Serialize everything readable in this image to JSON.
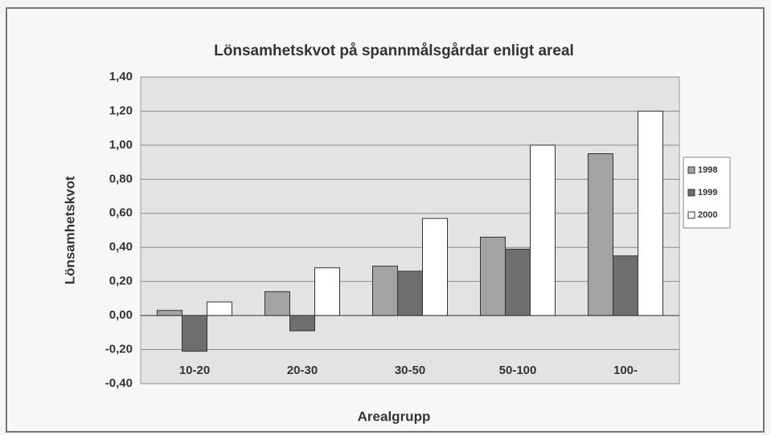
{
  "chart_data": {
    "type": "bar",
    "title": "Lönsamhetskvot på spannmålsgårdar enligt areal",
    "x_label": "Arealgrupp",
    "y_label": "Lönsamhetskvot",
    "categories": [
      "10-20",
      "20-30",
      "30-50",
      "50-100",
      "100-"
    ],
    "series": [
      {
        "name": "1998",
        "color": "#a3a3a3",
        "values": [
          0.03,
          0.14,
          0.29,
          0.46,
          0.95
        ]
      },
      {
        "name": "1999",
        "color": "#6e6e6e",
        "values": [
          -0.21,
          -0.09,
          0.26,
          0.39,
          0.35
        ]
      },
      {
        "name": "2000",
        "color": "#ffffff",
        "values": [
          0.08,
          0.28,
          0.57,
          1.0,
          1.2
        ]
      }
    ],
    "ylim": [
      -0.4,
      1.4
    ],
    "yticks": [
      {
        "value": -0.4,
        "label": "-0,40"
      },
      {
        "value": -0.2,
        "label": "-0,20"
      },
      {
        "value": 0,
        "label": "0,00"
      },
      {
        "value": 0.2,
        "label": "0,20"
      },
      {
        "value": 0.4,
        "label": "0,40"
      },
      {
        "value": 0.6,
        "label": "0,60"
      },
      {
        "value": 0.8,
        "label": "0,80"
      },
      {
        "value": 1.0,
        "label": "1,00"
      },
      {
        "value": 1.2,
        "label": "1,20"
      },
      {
        "value": 1.4,
        "label": "1,40"
      }
    ],
    "grid": true,
    "legend": "right"
  }
}
